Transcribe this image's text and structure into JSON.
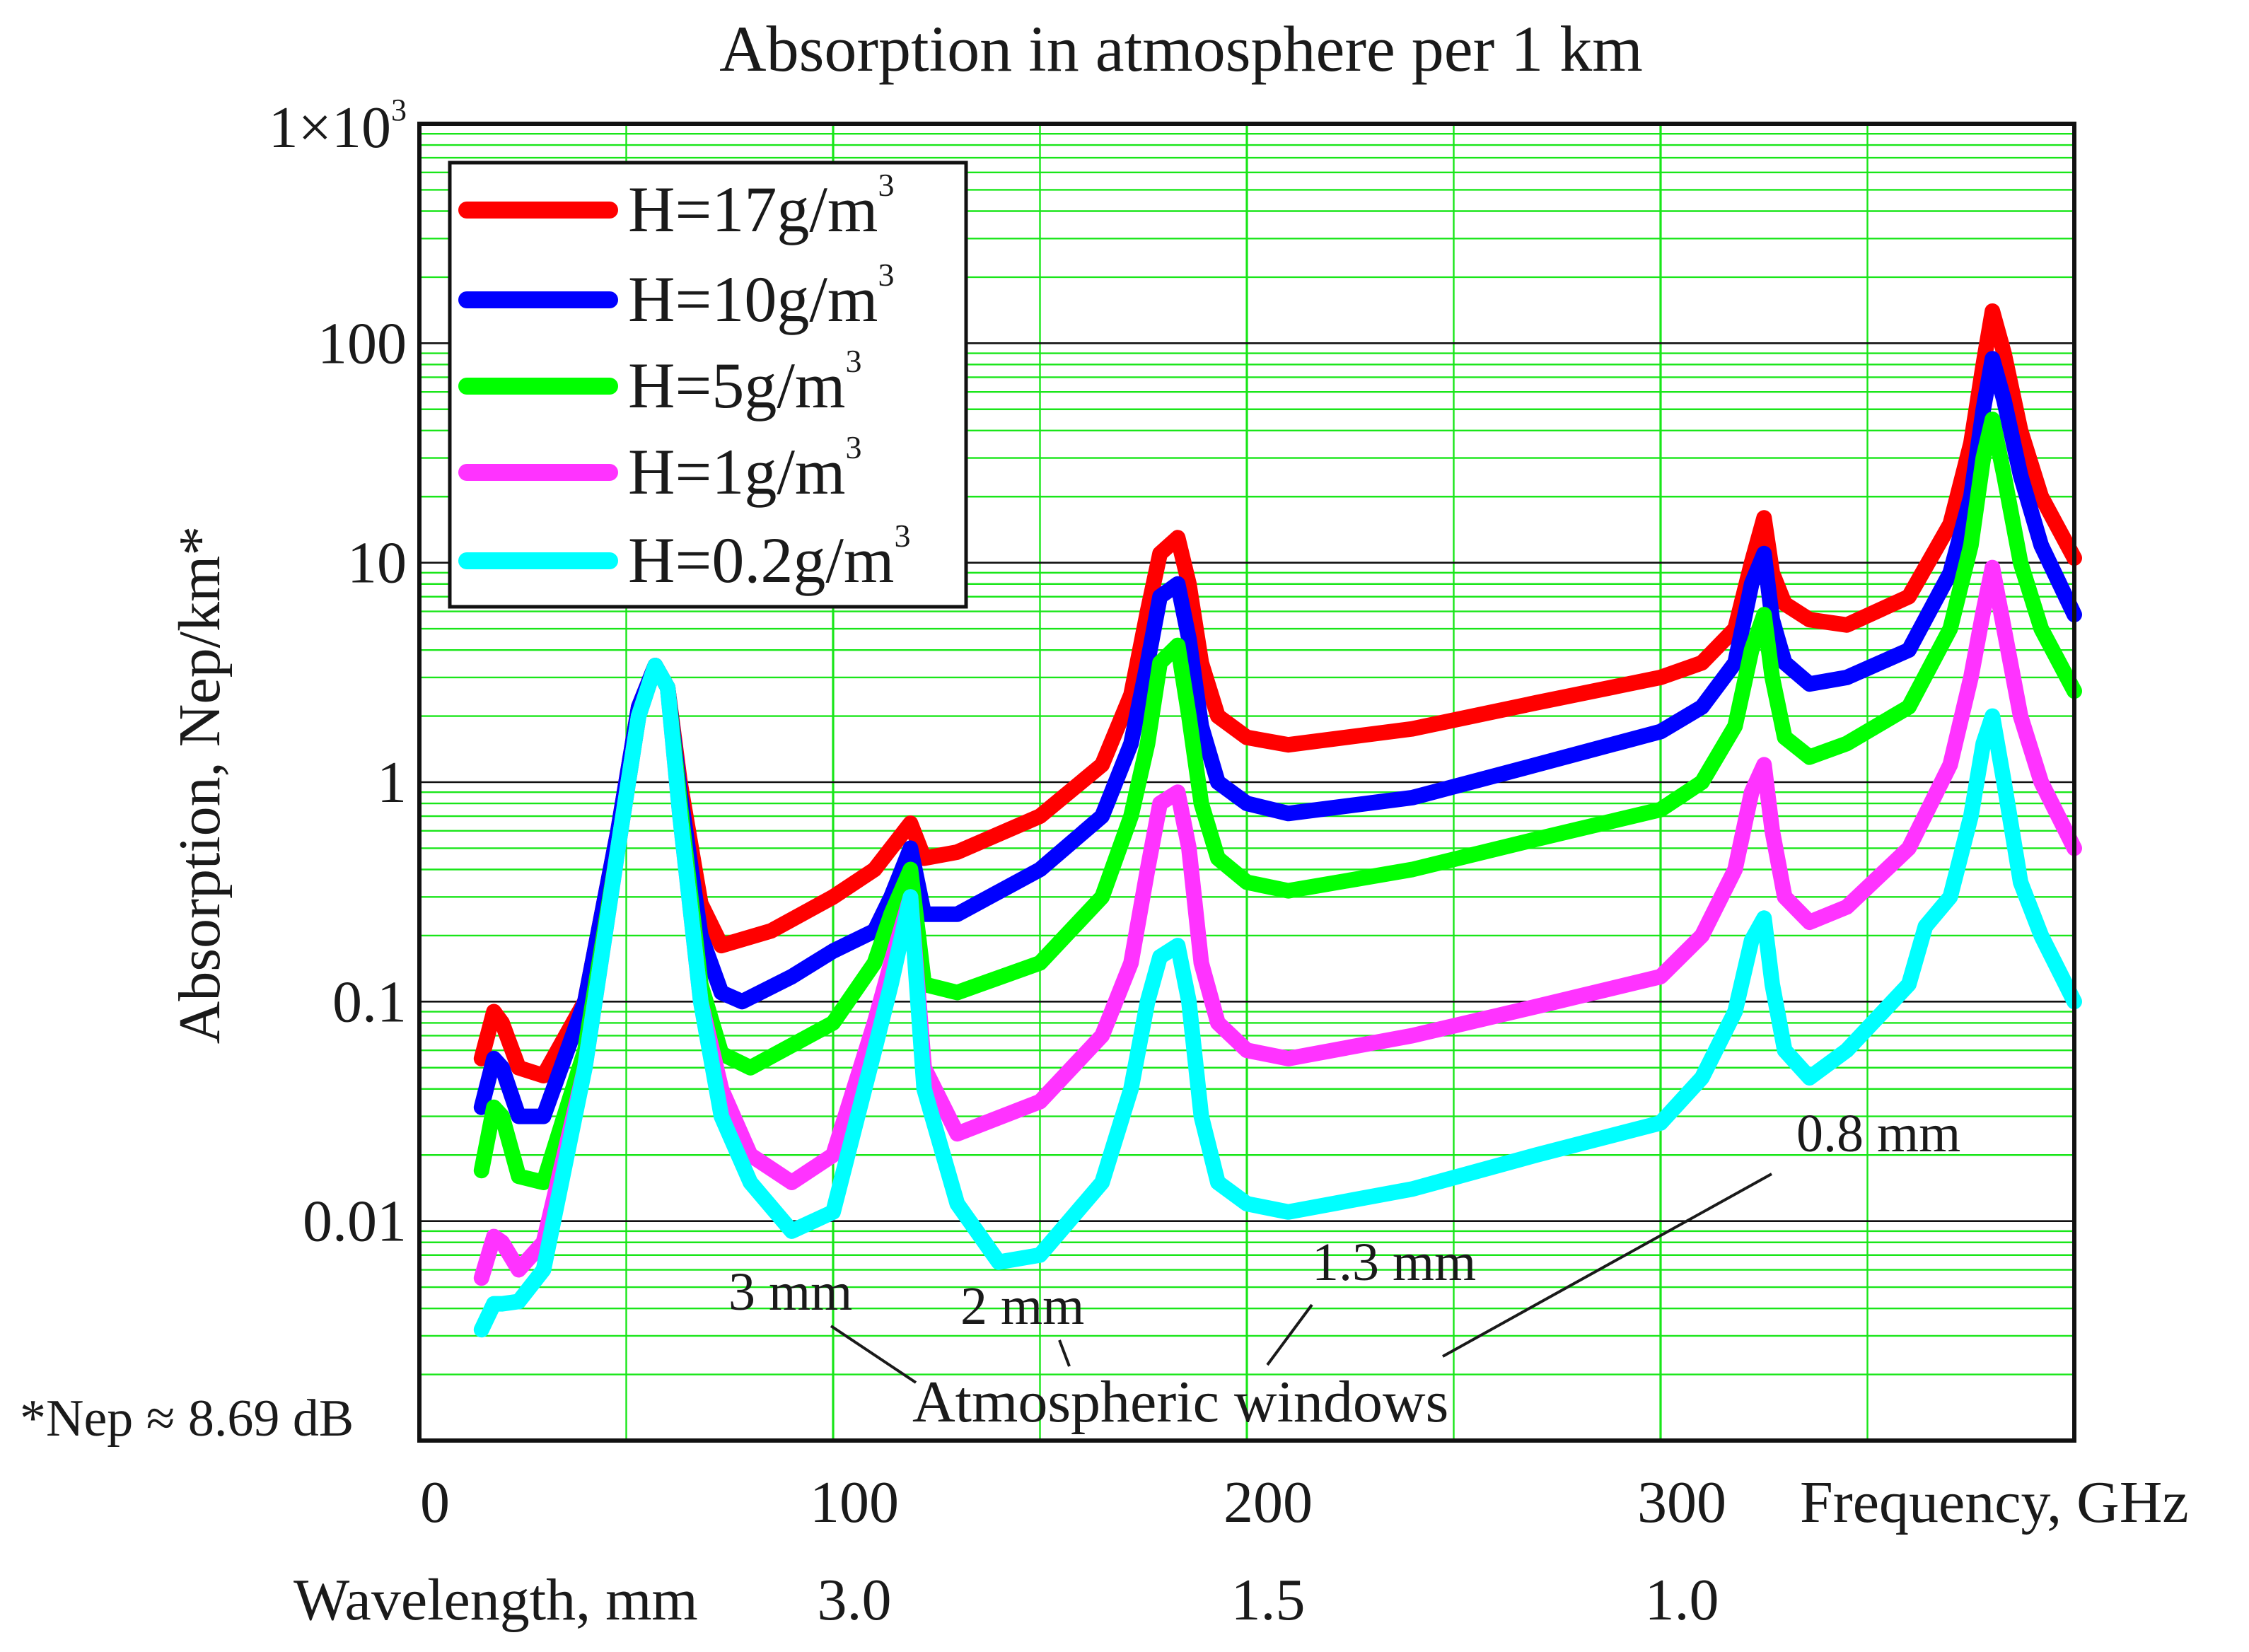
{
  "chart_data": {
    "type": "line",
    "title": "Absorption in atmosphere per 1 km",
    "xlabel": "Frequency, GHz",
    "ylabel": "Absorption, Nep/km*",
    "yscale": "log",
    "xlim": [
      0,
      400
    ],
    "ylim": [
      0.001,
      1000
    ],
    "x_ticks": [
      {
        "value": 0,
        "label": "0"
      },
      {
        "value": 100,
        "label": "100"
      },
      {
        "value": 200,
        "label": "200"
      },
      {
        "value": 300,
        "label": "300"
      }
    ],
    "y_ticks": [
      {
        "value": 0.01,
        "label": "0.01"
      },
      {
        "value": 0.1,
        "label": "0.1"
      },
      {
        "value": 1,
        "label": "1"
      },
      {
        "value": 10,
        "label": "10"
      },
      {
        "value": 100,
        "label": "100"
      }
    ],
    "y_top_tick": {
      "value": 1000,
      "label_base": "1×10",
      "label_exp": "3"
    },
    "wavelength_axis": {
      "label": "Wavelength, mm",
      "ticks": [
        {
          "freq": 100,
          "label": "3.0"
        },
        {
          "freq": 200,
          "label": "1.5"
        },
        {
          "freq": 300,
          "label": "1.0"
        }
      ]
    },
    "footnote": "*Nep ≈ 8.69 dB",
    "annotations": {
      "windows_label": "Atmospheric windows",
      "windows": [
        {
          "label": "3 mm",
          "freq": 95
        },
        {
          "label": "2 mm",
          "freq": 150
        },
        {
          "label": "1.3 mm",
          "freq": 230
        },
        {
          "label": "0.8 mm",
          "freq": 345
        }
      ]
    },
    "legend_position": "top-left",
    "series": [
      {
        "name": "H=17g/m",
        "sup": "3",
        "color": "#ff0000",
        "points": [
          [
            15,
            0.055
          ],
          [
            18,
            0.09
          ],
          [
            20,
            0.08
          ],
          [
            24,
            0.05
          ],
          [
            30,
            0.046
          ],
          [
            40,
            0.1
          ],
          [
            48,
            0.6
          ],
          [
            53,
            2.2
          ],
          [
            57,
            3.4
          ],
          [
            60,
            2.7
          ],
          [
            63,
            1.0
          ],
          [
            68,
            0.28
          ],
          [
            73,
            0.18
          ],
          [
            85,
            0.21
          ],
          [
            100,
            0.3
          ],
          [
            110,
            0.4
          ],
          [
            114,
            0.5
          ],
          [
            118.7,
            0.65
          ],
          [
            122,
            0.45
          ],
          [
            130,
            0.48
          ],
          [
            150,
            0.7
          ],
          [
            165,
            1.2
          ],
          [
            172,
            2.5
          ],
          [
            176,
            6.0
          ],
          [
            179,
            11.0
          ],
          [
            183.3,
            13.0
          ],
          [
            186,
            8.0
          ],
          [
            189,
            3.5
          ],
          [
            193,
            2.0
          ],
          [
            200,
            1.6
          ],
          [
            210,
            1.48
          ],
          [
            240,
            1.75
          ],
          [
            270,
            2.3
          ],
          [
            300,
            3.0
          ],
          [
            310,
            3.5
          ],
          [
            318,
            5.0
          ],
          [
            322,
            10.0
          ],
          [
            325,
            16.0
          ],
          [
            327,
            9.0
          ],
          [
            330,
            6.5
          ],
          [
            336,
            5.5
          ],
          [
            345,
            5.2
          ],
          [
            360,
            7.0
          ],
          [
            370,
            15
          ],
          [
            375,
            35
          ],
          [
            378,
            80
          ],
          [
            380.2,
            140
          ],
          [
            383,
            90
          ],
          [
            387,
            40
          ],
          [
            392,
            20
          ],
          [
            400,
            10.5
          ]
        ]
      },
      {
        "name": "H=10g/m",
        "sup": "3",
        "color": "#0000ff",
        "points": [
          [
            15,
            0.033
          ],
          [
            18,
            0.055
          ],
          [
            20,
            0.05
          ],
          [
            24,
            0.03
          ],
          [
            30,
            0.03
          ],
          [
            40,
            0.1
          ],
          [
            48,
            0.6
          ],
          [
            53,
            2.2
          ],
          [
            57,
            3.4
          ],
          [
            60,
            2.7
          ],
          [
            63,
            0.9
          ],
          [
            68,
            0.2
          ],
          [
            73,
            0.11
          ],
          [
            78,
            0.1
          ],
          [
            90,
            0.13
          ],
          [
            100,
            0.17
          ],
          [
            110,
            0.21
          ],
          [
            114,
            0.3
          ],
          [
            118.7,
            0.5
          ],
          [
            122,
            0.25
          ],
          [
            130,
            0.25
          ],
          [
            150,
            0.4
          ],
          [
            165,
            0.7
          ],
          [
            172,
            1.5
          ],
          [
            176,
            3.5
          ],
          [
            179,
            7.0
          ],
          [
            183.3,
            8.0
          ],
          [
            186,
            4.5
          ],
          [
            189,
            1.8
          ],
          [
            193,
            1.0
          ],
          [
            200,
            0.8
          ],
          [
            210,
            0.72
          ],
          [
            240,
            0.85
          ],
          [
            270,
            1.2
          ],
          [
            300,
            1.7
          ],
          [
            310,
            2.2
          ],
          [
            318,
            3.5
          ],
          [
            322,
            8.0
          ],
          [
            325,
            11.0
          ],
          [
            327,
            5.5
          ],
          [
            330,
            3.5
          ],
          [
            336,
            2.8
          ],
          [
            345,
            3.0
          ],
          [
            360,
            4.0
          ],
          [
            370,
            9
          ],
          [
            375,
            20
          ],
          [
            378,
            50
          ],
          [
            380.2,
            85
          ],
          [
            383,
            55
          ],
          [
            387,
            25
          ],
          [
            392,
            12
          ],
          [
            400,
            5.8
          ]
        ]
      },
      {
        "name": "H=5g/m",
        "sup": "3",
        "color": "#00ff00",
        "points": [
          [
            15,
            0.017
          ],
          [
            18,
            0.033
          ],
          [
            20,
            0.03
          ],
          [
            24,
            0.016
          ],
          [
            30,
            0.015
          ],
          [
            40,
            0.06
          ],
          [
            48,
            0.5
          ],
          [
            53,
            2.0
          ],
          [
            57,
            3.4
          ],
          [
            60,
            2.7
          ],
          [
            63,
            0.8
          ],
          [
            68,
            0.12
          ],
          [
            73,
            0.058
          ],
          [
            80,
            0.05
          ],
          [
            100,
            0.08
          ],
          [
            110,
            0.15
          ],
          [
            114,
            0.25
          ],
          [
            118.7,
            0.4
          ],
          [
            122,
            0.12
          ],
          [
            130,
            0.11
          ],
          [
            150,
            0.15
          ],
          [
            165,
            0.3
          ],
          [
            172,
            0.7
          ],
          [
            176,
            1.5
          ],
          [
            179,
            3.5
          ],
          [
            183.3,
            4.2
          ],
          [
            186,
            2.0
          ],
          [
            189,
            0.8
          ],
          [
            193,
            0.45
          ],
          [
            200,
            0.35
          ],
          [
            210,
            0.32
          ],
          [
            240,
            0.4
          ],
          [
            270,
            0.55
          ],
          [
            300,
            0.75
          ],
          [
            310,
            1.0
          ],
          [
            318,
            1.8
          ],
          [
            322,
            4.0
          ],
          [
            325,
            5.8
          ],
          [
            327,
            3.0
          ],
          [
            330,
            1.6
          ],
          [
            336,
            1.3
          ],
          [
            345,
            1.5
          ],
          [
            360,
            2.2
          ],
          [
            370,
            5
          ],
          [
            375,
            12
          ],
          [
            378,
            30
          ],
          [
            380.2,
            45
          ],
          [
            383,
            25
          ],
          [
            387,
            10
          ],
          [
            392,
            5
          ],
          [
            400,
            2.6
          ]
        ]
      },
      {
        "name": "H=1g/m",
        "sup": "3",
        "color": "#ff33ff",
        "points": [
          [
            15,
            0.0055
          ],
          [
            18,
            0.0085
          ],
          [
            20,
            0.008
          ],
          [
            24,
            0.006
          ],
          [
            30,
            0.008
          ],
          [
            40,
            0.05
          ],
          [
            48,
            0.5
          ],
          [
            53,
            2.0
          ],
          [
            57,
            3.4
          ],
          [
            60,
            2.7
          ],
          [
            63,
            0.7
          ],
          [
            68,
            0.1
          ],
          [
            73,
            0.04
          ],
          [
            80,
            0.02
          ],
          [
            90,
            0.015
          ],
          [
            100,
            0.02
          ],
          [
            110,
            0.08
          ],
          [
            114,
            0.15
          ],
          [
            118.7,
            0.3
          ],
          [
            122,
            0.05
          ],
          [
            130,
            0.025
          ],
          [
            150,
            0.035
          ],
          [
            165,
            0.07
          ],
          [
            172,
            0.15
          ],
          [
            176,
            0.4
          ],
          [
            179,
            0.8
          ],
          [
            183.3,
            0.9
          ],
          [
            186,
            0.5
          ],
          [
            189,
            0.15
          ],
          [
            193,
            0.08
          ],
          [
            200,
            0.06
          ],
          [
            210,
            0.055
          ],
          [
            240,
            0.07
          ],
          [
            270,
            0.095
          ],
          [
            300,
            0.13
          ],
          [
            310,
            0.2
          ],
          [
            318,
            0.4
          ],
          [
            322,
            0.9
          ],
          [
            325,
            1.2
          ],
          [
            327,
            0.6
          ],
          [
            330,
            0.3
          ],
          [
            336,
            0.23
          ],
          [
            345,
            0.27
          ],
          [
            360,
            0.5
          ],
          [
            370,
            1.2
          ],
          [
            375,
            3
          ],
          [
            378,
            6
          ],
          [
            380.2,
            9.5
          ],
          [
            383,
            5
          ],
          [
            387,
            2
          ],
          [
            392,
            1.0
          ],
          [
            400,
            0.5
          ]
        ]
      },
      {
        "name": "H=0.2g/m",
        "sup": "3",
        "color": "#00ffff",
        "points": [
          [
            15,
            0.0032
          ],
          [
            18,
            0.0042
          ],
          [
            20,
            0.0042
          ],
          [
            24,
            0.0043
          ],
          [
            30,
            0.006
          ],
          [
            40,
            0.05
          ],
          [
            48,
            0.5
          ],
          [
            53,
            2.0
          ],
          [
            57,
            3.4
          ],
          [
            60,
            2.7
          ],
          [
            63,
            0.7
          ],
          [
            68,
            0.1
          ],
          [
            73,
            0.03
          ],
          [
            80,
            0.015
          ],
          [
            90,
            0.009
          ],
          [
            100,
            0.011
          ],
          [
            110,
            0.06
          ],
          [
            114,
            0.12
          ],
          [
            118.7,
            0.3
          ],
          [
            122,
            0.04
          ],
          [
            130,
            0.012
          ],
          [
            140,
            0.0065
          ],
          [
            150,
            0.007
          ],
          [
            165,
            0.015
          ],
          [
            172,
            0.04
          ],
          [
            176,
            0.1
          ],
          [
            179,
            0.16
          ],
          [
            183.3,
            0.18
          ],
          [
            186,
            0.1
          ],
          [
            189,
            0.03
          ],
          [
            193,
            0.015
          ],
          [
            200,
            0.012
          ],
          [
            210,
            0.011
          ],
          [
            240,
            0.014
          ],
          [
            270,
            0.02
          ],
          [
            300,
            0.028
          ],
          [
            310,
            0.045
          ],
          [
            318,
            0.09
          ],
          [
            322,
            0.19
          ],
          [
            325,
            0.24
          ],
          [
            327,
            0.12
          ],
          [
            330,
            0.06
          ],
          [
            336,
            0.045
          ],
          [
            345,
            0.06
          ],
          [
            360,
            0.12
          ],
          [
            364,
            0.22
          ],
          [
            370,
            0.3
          ],
          [
            375,
            0.7
          ],
          [
            378,
            1.5
          ],
          [
            380.2,
            2.0
          ],
          [
            383,
            1.0
          ],
          [
            387,
            0.35
          ],
          [
            392,
            0.2
          ],
          [
            400,
            0.1
          ]
        ]
      }
    ]
  }
}
